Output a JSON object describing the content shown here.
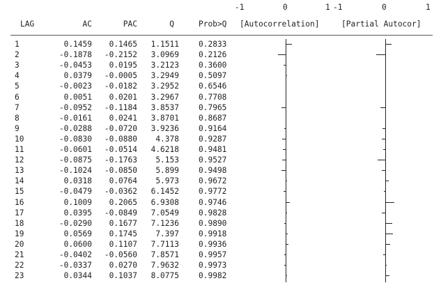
{
  "header": {
    "scale_left": {
      "neg": "-1",
      "zero": "0",
      "pos": "1"
    },
    "scale_right": {
      "neg": "-1",
      "zero": "0",
      "pos": "1"
    },
    "columns": [
      "LAG",
      "AC",
      "PAC",
      "Q",
      "Prob>Q",
      "[Autocorrelation]",
      "[Partial Autocor]"
    ]
  },
  "rows": [
    {
      "lag": "1",
      "ac": "0.1459",
      "pac": "0.1465",
      "q": "1.1511",
      "prob": "0.2833"
    },
    {
      "lag": "2",
      "ac": "-0.1878",
      "pac": "-0.2152",
      "q": "3.0969",
      "prob": "0.2126"
    },
    {
      "lag": "3",
      "ac": "-0.0453",
      "pac": "0.0195",
      "q": "3.2123",
      "prob": "0.3600"
    },
    {
      "lag": "4",
      "ac": "0.0379",
      "pac": "-0.0005",
      "q": "3.2949",
      "prob": "0.5097"
    },
    {
      "lag": "5",
      "ac": "-0.0023",
      "pac": "-0.0182",
      "q": "3.2952",
      "prob": "0.6546"
    },
    {
      "lag": "6",
      "ac": "0.0051",
      "pac": "0.0201",
      "q": "3.2967",
      "prob": "0.7708"
    },
    {
      "lag": "7",
      "ac": "-0.0952",
      "pac": "-0.1184",
      "q": "3.8537",
      "prob": "0.7965"
    },
    {
      "lag": "8",
      "ac": "-0.0161",
      "pac": "0.0241",
      "q": "3.8701",
      "prob": "0.8687"
    },
    {
      "lag": "9",
      "ac": "-0.0288",
      "pac": "-0.0720",
      "q": "3.9236",
      "prob": "0.9164"
    },
    {
      "lag": "10",
      "ac": "-0.0830",
      "pac": "-0.0880",
      "q": "4.378",
      "prob": "0.9287"
    },
    {
      "lag": "11",
      "ac": "-0.0601",
      "pac": "-0.0514",
      "q": "4.6218",
      "prob": "0.9481"
    },
    {
      "lag": "12",
      "ac": "-0.0875",
      "pac": "-0.1763",
      "q": "5.153",
      "prob": "0.9527"
    },
    {
      "lag": "13",
      "ac": "-0.1024",
      "pac": "-0.0850",
      "q": "5.899",
      "prob": "0.9498"
    },
    {
      "lag": "14",
      "ac": "0.0318",
      "pac": "0.0764",
      "q": "5.973",
      "prob": "0.9672"
    },
    {
      "lag": "15",
      "ac": "-0.0479",
      "pac": "-0.0362",
      "q": "6.1452",
      "prob": "0.9772"
    },
    {
      "lag": "16",
      "ac": "0.1009",
      "pac": "0.2065",
      "q": "6.9308",
      "prob": "0.9746"
    },
    {
      "lag": "17",
      "ac": "0.0395",
      "pac": "-0.0849",
      "q": "7.0549",
      "prob": "0.9828"
    },
    {
      "lag": "18",
      "ac": "-0.0290",
      "pac": "0.1677",
      "q": "7.1236",
      "prob": "0.9890"
    },
    {
      "lag": "19",
      "ac": "0.0569",
      "pac": "0.1745",
      "q": "7.397",
      "prob": "0.9918"
    },
    {
      "lag": "20",
      "ac": "0.0600",
      "pac": "0.1107",
      "q": "7.7113",
      "prob": "0.9936"
    },
    {
      "lag": "21",
      "ac": "-0.0402",
      "pac": "-0.0560",
      "q": "7.8571",
      "prob": "0.9957"
    },
    {
      "lag": "22",
      "ac": "-0.0337",
      "pac": "0.0270",
      "q": "7.9632",
      "prob": "0.9973"
    },
    {
      "lag": "23",
      "ac": "0.0344",
      "pac": "0.1037",
      "q": "8.0775",
      "prob": "0.9982"
    }
  ]
}
